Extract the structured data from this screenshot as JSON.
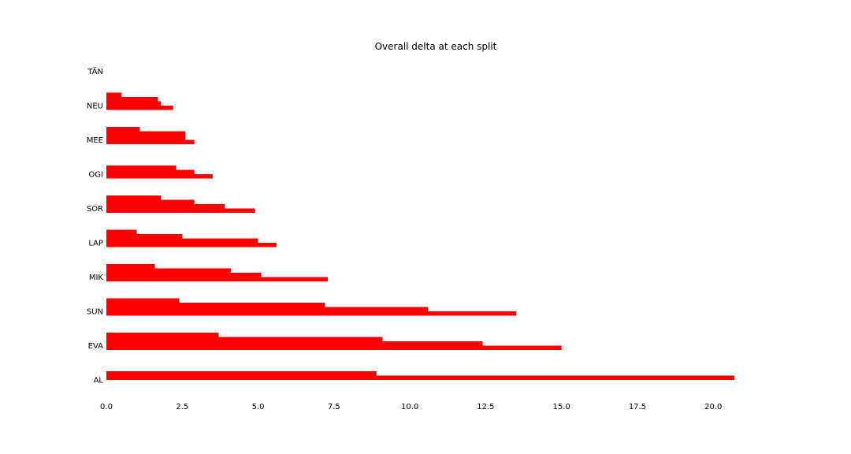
{
  "chart_data": {
    "type": "bar",
    "orientation": "horizontal",
    "title": "Overall delta at each split",
    "xlabel": "",
    "ylabel": "",
    "xlim": [
      0,
      21.5
    ],
    "grid": false,
    "legend": "none",
    "color": "#ff0000",
    "categories": [
      "AL",
      "EVA",
      "SUN",
      "MIK",
      "LAP",
      "SOR",
      "OGI",
      "MEE",
      "NEU",
      "TÄN"
    ],
    "x_ticks": [
      "0.0",
      "2.5",
      "5.0",
      "7.5",
      "10.0",
      "12.5",
      "15.0",
      "17.5",
      "20.0"
    ],
    "series": [
      {
        "values": [
          null,
          3.7,
          2.4,
          1.6,
          1.0,
          1.8,
          null,
          1.1,
          0.5,
          0.0
        ]
      },
      {
        "values": [
          8.9,
          9.1,
          7.2,
          4.1,
          2.5,
          2.9,
          2.3,
          2.6,
          1.7,
          0.0
        ]
      },
      {
        "values": [
          20.7,
          12.4,
          10.6,
          5.1,
          5.0,
          3.9,
          2.9,
          2.6,
          1.8,
          0.0
        ]
      },
      {
        "values": [
          null,
          15.0,
          13.5,
          7.3,
          5.6,
          4.9,
          3.5,
          2.9,
          2.2,
          0.0
        ]
      }
    ]
  }
}
